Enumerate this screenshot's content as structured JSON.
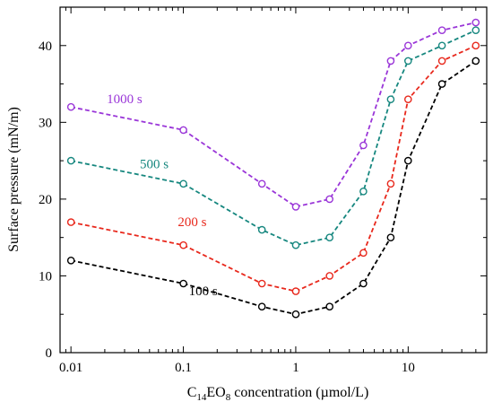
{
  "chart_data": {
    "type": "line",
    "xlabel": {
      "base": "C",
      "sub1": "14",
      "mid": "EO",
      "sub2": "8",
      "rest": " concentration (µmol/L)"
    },
    "ylabel": "Surface pressure (mN/m)",
    "xscale": "log",
    "xlim": [
      0.008,
      50
    ],
    "ylim": [
      0,
      45
    ],
    "xticks": [
      0.01,
      0.1,
      1,
      10
    ],
    "xtick_labels": [
      "0.01",
      "0.1",
      "1",
      "10"
    ],
    "yticks": [
      0,
      10,
      20,
      30,
      40
    ],
    "ytick_labels": [
      "0",
      "10",
      "20",
      "30",
      "40"
    ],
    "grid": false,
    "x": [
      0.01,
      0.1,
      0.5,
      1,
      2,
      4,
      7,
      10,
      20,
      40
    ],
    "series": [
      {
        "name": "100 s",
        "color": "#000000",
        "values": [
          12,
          9,
          6,
          5,
          6,
          9,
          15,
          25,
          35,
          38
        ]
      },
      {
        "name": "200 s",
        "color": "#e8281c",
        "values": [
          17,
          14,
          9,
          8,
          10,
          13,
          22,
          33,
          38,
          40
        ]
      },
      {
        "name": "500 s",
        "color": "#16877f",
        "values": [
          25,
          22,
          16,
          14,
          15,
          21,
          33,
          38,
          40,
          42
        ]
      },
      {
        "name": "1000 s",
        "color": "#9a36d8",
        "values": [
          32,
          29,
          22,
          19,
          20,
          27,
          38,
          40,
          42,
          43
        ]
      }
    ],
    "annotations": [
      {
        "series": 0,
        "text": "100 s",
        "x": 0.15,
        "y": 7.5
      },
      {
        "series": 1,
        "text": "200 s",
        "x": 0.12,
        "y": 16.5
      },
      {
        "series": 2,
        "text": "500 s",
        "x": 0.055,
        "y": 24
      },
      {
        "series": 3,
        "text": "1000 s",
        "x": 0.03,
        "y": 32.5
      }
    ]
  }
}
